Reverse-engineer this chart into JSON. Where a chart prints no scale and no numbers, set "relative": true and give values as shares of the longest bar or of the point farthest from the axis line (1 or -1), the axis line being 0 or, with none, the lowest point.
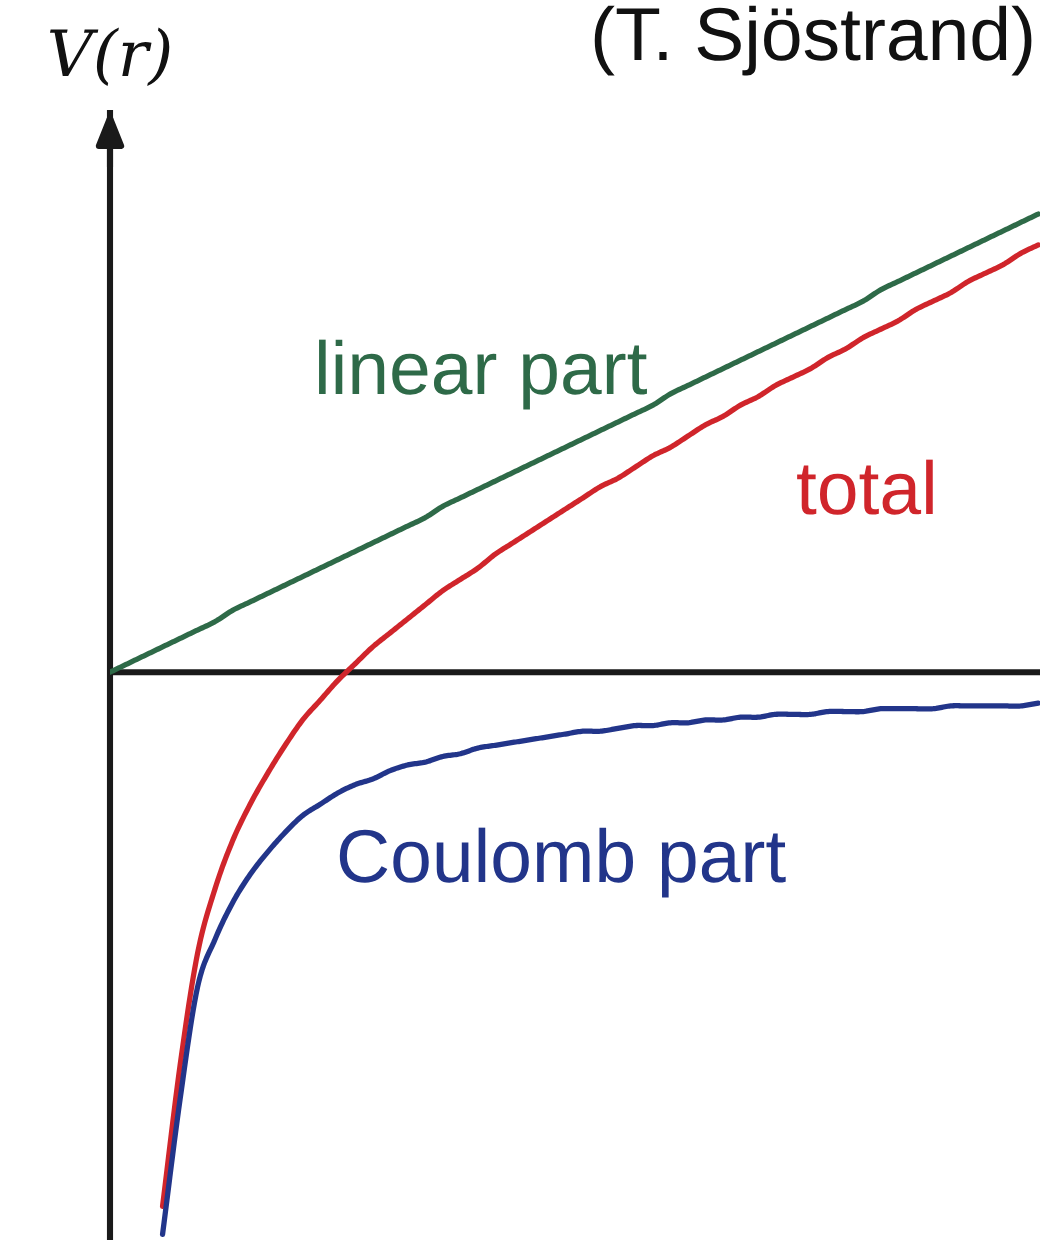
{
  "chart_data": {
    "type": "line",
    "ylabel": "V(r)",
    "annotations": [
      "(T. Sjöstrand)"
    ],
    "relative": true,
    "categories": [
      null,
      null,
      null,
      null,
      null,
      null,
      null,
      null,
      null,
      null,
      null,
      null,
      null,
      null,
      null,
      null,
      null,
      null,
      null,
      null,
      null,
      null,
      null,
      null,
      null,
      null,
      null,
      null,
      null,
      null,
      null,
      null,
      null,
      null,
      null,
      null,
      null,
      null,
      null,
      null,
      null,
      null,
      null,
      null,
      null,
      null,
      null,
      null,
      null,
      null,
      null,
      null,
      null,
      null
    ],
    "series": [
      {
        "name": "linear part",
        "color": "#2e6a48",
        "values": [
          0,
          0.015,
          0.03,
          0.045,
          0.06,
          0.075,
          0.09,
          0.11,
          0.125,
          0.14,
          0.155,
          0.17,
          0.185,
          0.2,
          0.215,
          0.23,
          0.245,
          0.26,
          0.275,
          0.295,
          0.31,
          0.325,
          0.34,
          0.355,
          0.37,
          0.385,
          0.4,
          0.415,
          0.43,
          0.445,
          0.46,
          0.475,
          0.495,
          0.51,
          0.525,
          0.54,
          0.555,
          0.57,
          0.585,
          0.6,
          0.615,
          0.63,
          0.645,
          0.66,
          0.68,
          0.695,
          0.71,
          0.725,
          0.74,
          0.755,
          0.77,
          0.785,
          0.8,
          0.815
        ]
      },
      {
        "name": "total",
        "color": "#d0252b",
        "values": [
          null,
          null,
          null,
          -0.95,
          -0.7,
          -0.5,
          -0.385,
          -0.3,
          -0.235,
          -0.18,
          -0.13,
          -0.085,
          -0.05,
          -0.015,
          0.015,
          0.045,
          0.07,
          0.095,
          0.12,
          0.145,
          0.165,
          0.185,
          0.21,
          0.23,
          0.25,
          0.27,
          0.29,
          0.31,
          0.33,
          0.345,
          0.365,
          0.385,
          0.4,
          0.42,
          0.44,
          0.455,
          0.475,
          0.49,
          0.51,
          0.525,
          0.54,
          0.56,
          0.575,
          0.595,
          0.61,
          0.625,
          0.645,
          0.66,
          0.675,
          0.695,
          0.71,
          0.725,
          0.745,
          0.76
        ]
      },
      {
        "name": "Coulomb part",
        "color": "#22358a",
        "values": [
          null,
          null,
          null,
          -1.0,
          -0.76,
          -0.56,
          -0.475,
          -0.41,
          -0.36,
          -0.32,
          -0.285,
          -0.255,
          -0.235,
          -0.215,
          -0.2,
          -0.19,
          -0.175,
          -0.165,
          -0.16,
          -0.15,
          -0.145,
          -0.135,
          -0.13,
          -0.125,
          -0.12,
          -0.115,
          -0.11,
          -0.105,
          -0.105,
          -0.1,
          -0.095,
          -0.095,
          -0.09,
          -0.09,
          -0.085,
          -0.085,
          -0.08,
          -0.08,
          -0.075,
          -0.075,
          -0.075,
          -0.07,
          -0.07,
          -0.07,
          -0.065,
          -0.065,
          -0.065,
          -0.065,
          -0.06,
          -0.06,
          -0.06,
          -0.06,
          -0.06,
          -0.055
        ]
      }
    ]
  }
}
